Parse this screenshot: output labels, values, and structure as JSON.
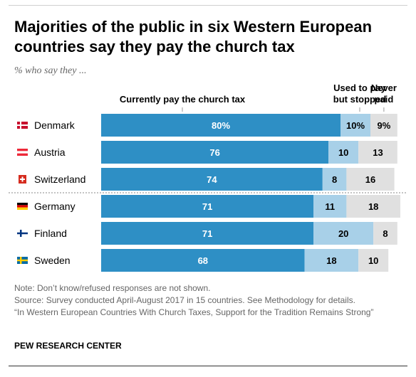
{
  "header": {
    "title": "Majorities of the public in six Western European countries say they pay the church tax",
    "subtitle": "% who say they ..."
  },
  "footer": {
    "notes": [
      "Note: Don’t know/refused responses are not shown.",
      "Source: Survey conducted April-August 2017 in 15 countries. See Methodology for details.",
      "“In Western European Countries With Church Taxes, Support for the Tradition Remains Strong”"
    ],
    "source_label": "PEW RESEARCH CENTER"
  },
  "colors": {
    "pay": "#2e8fc5",
    "stopped": "#a8d0e8",
    "never": "#e0e0e0",
    "text_dark": "#000000",
    "text_light": "#ffffff"
  },
  "chart_data": {
    "type": "bar",
    "orientation": "horizontal",
    "stacked": true,
    "xlim": [
      0,
      100
    ],
    "categories": [
      "Denmark",
      "Austria",
      "Switzerland",
      "Germany",
      "Finland",
      "Sweden"
    ],
    "flags": [
      "denmark-flag-icon",
      "austria-flag-icon",
      "switzerland-flag-icon",
      "germany-flag-icon",
      "finland-flag-icon",
      "sweden-flag-icon"
    ],
    "series": [
      {
        "name": "Currently pay the church tax",
        "values": [
          80,
          76,
          74,
          71,
          71,
          68
        ]
      },
      {
        "name": "Used to pay but stopped",
        "values": [
          10,
          10,
          8,
          11,
          20,
          18
        ]
      },
      {
        "name": "Never paid",
        "values": [
          9,
          13,
          16,
          18,
          8,
          10
        ]
      }
    ],
    "value_labels": [
      [
        "80%",
        "10%",
        "9%"
      ],
      [
        "76",
        "10",
        "13"
      ],
      [
        "74",
        "8",
        "16"
      ],
      [
        "71",
        "11",
        "18"
      ],
      [
        "71",
        "20",
        "8"
      ],
      [
        "68",
        "18",
        "10"
      ]
    ],
    "legend_lines": [
      [
        "Currently pay the church tax"
      ],
      [
        "Used to pay",
        "but stopped"
      ],
      [
        "Never",
        "paid"
      ]
    ],
    "grid": false,
    "legend_placement": "top"
  }
}
